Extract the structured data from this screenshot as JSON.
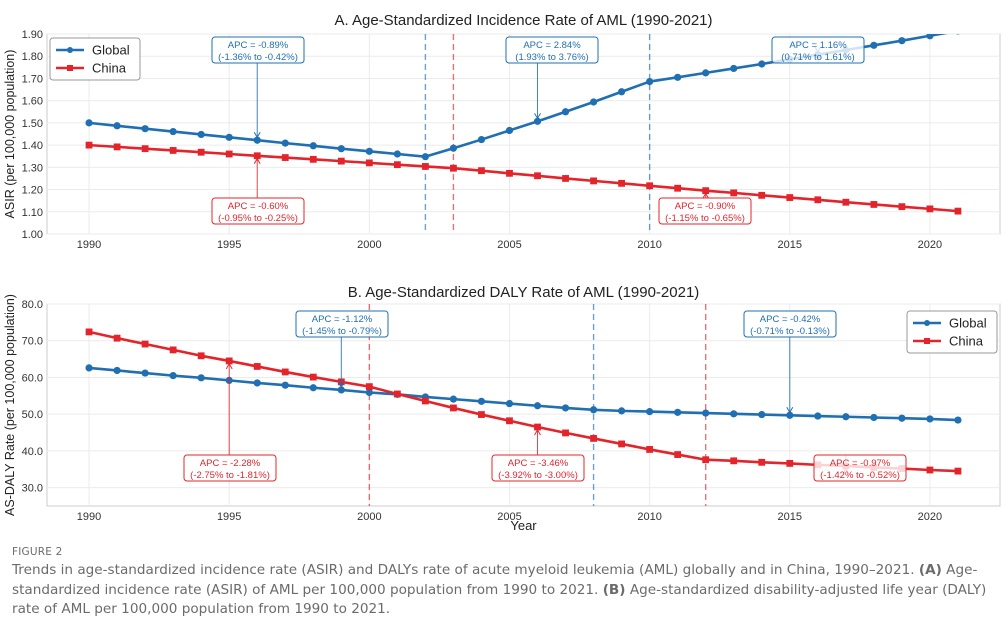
{
  "chart_data": [
    {
      "type": "line",
      "panel": "A",
      "title": "A. Age-Standardized Incidence Rate of AML (1990-2021)",
      "xlabel": "",
      "ylabel": "ASIR (per 100,000 population)",
      "xlim": [
        1988.5,
        2022.5
      ],
      "ylim": [
        1.0,
        1.9
      ],
      "x_ticks": [
        1990,
        1995,
        2000,
        2005,
        2010,
        2015,
        2020
      ],
      "y_ticks": [
        "1.00",
        "1.10",
        "1.20",
        "1.30",
        "1.40",
        "1.50",
        "1.60",
        "1.70",
        "1.80",
        "1.90"
      ],
      "grid": true,
      "legend": {
        "position": "top-left",
        "entries": [
          "Global",
          "China"
        ]
      },
      "x": [
        1990,
        1991,
        1992,
        1993,
        1994,
        1995,
        1996,
        1997,
        1998,
        1999,
        2000,
        2001,
        2002,
        2003,
        2004,
        2005,
        2006,
        2007,
        2008,
        2009,
        2010,
        2011,
        2012,
        2013,
        2014,
        2015,
        2016,
        2017,
        2018,
        2019,
        2020,
        2021
      ],
      "series": [
        {
          "name": "Global",
          "color": "#1f6fb2",
          "marker": "circle",
          "values": [
            1.5,
            1.487,
            1.474,
            1.461,
            1.448,
            1.435,
            1.422,
            1.409,
            1.397,
            1.384,
            1.372,
            1.36,
            1.348,
            1.386,
            1.425,
            1.466,
            1.507,
            1.55,
            1.594,
            1.64,
            1.686,
            1.705,
            1.725,
            1.745,
            1.765,
            1.786,
            1.807,
            1.828,
            1.849,
            1.87,
            1.892,
            1.914
          ]
        },
        {
          "name": "China",
          "color": "#e3242b",
          "marker": "square",
          "values": [
            1.4,
            1.392,
            1.384,
            1.376,
            1.368,
            1.36,
            1.352,
            1.344,
            1.336,
            1.328,
            1.32,
            1.312,
            1.304,
            1.296,
            1.285,
            1.273,
            1.262,
            1.25,
            1.239,
            1.228,
            1.217,
            1.206,
            1.195,
            1.185,
            1.174,
            1.164,
            1.154,
            1.143,
            1.133,
            1.123,
            1.113,
            1.103
          ]
        }
      ],
      "breakpoints": [
        {
          "year": 2002,
          "series": "Global"
        },
        {
          "year": 2003,
          "series": "China"
        },
        {
          "year": 2010,
          "series": "Global"
        }
      ],
      "annotations": [
        {
          "series": "Global",
          "line1": "APC = -0.89%",
          "line2": "(-1.36% to -0.42%)",
          "arrow_year": 1996,
          "dir": "down"
        },
        {
          "series": "Global",
          "line1": "APC = 2.84%",
          "line2": "(1.93% to 3.76%)",
          "arrow_year": 2006,
          "dir": "down"
        },
        {
          "series": "Global",
          "line1": "APC = 1.16%",
          "line2": "(0.71% to 1.61%)",
          "arrow_year": 2016,
          "dir": "down"
        },
        {
          "series": "China",
          "line1": "APC = -0.60%",
          "line2": "(-0.95% to -0.25%)",
          "arrow_year": 1996,
          "dir": "up"
        },
        {
          "series": "China",
          "line1": "APC = -0.90%",
          "line2": "(-1.15% to -0.65%)",
          "arrow_year": 2012,
          "dir": "up"
        }
      ]
    },
    {
      "type": "line",
      "panel": "B",
      "title": "B. Age-Standardized DALY Rate of AML (1990-2021)",
      "xlabel": "Year",
      "ylabel": "AS-DALY Rate (per 100,000 population)",
      "xlim": [
        1988.5,
        2022.5
      ],
      "ylim": [
        25.0,
        80.0
      ],
      "x_ticks": [
        1990,
        1995,
        2000,
        2005,
        2010,
        2015,
        2020
      ],
      "y_ticks": [
        "30.0",
        "40.0",
        "50.0",
        "60.0",
        "70.0",
        "80.0"
      ],
      "grid": true,
      "legend": {
        "position": "top-right",
        "entries": [
          "Global",
          "China"
        ]
      },
      "x": [
        1990,
        1991,
        1992,
        1993,
        1994,
        1995,
        1996,
        1997,
        1998,
        1999,
        2000,
        2001,
        2002,
        2003,
        2004,
        2005,
        2006,
        2007,
        2008,
        2009,
        2010,
        2011,
        2012,
        2013,
        2014,
        2015,
        2016,
        2017,
        2018,
        2019,
        2020,
        2021
      ],
      "series": [
        {
          "name": "Global",
          "color": "#1f6fb2",
          "marker": "circle",
          "values": [
            62.6,
            61.9,
            61.2,
            60.5,
            59.9,
            59.2,
            58.5,
            57.9,
            57.2,
            56.6,
            55.9,
            55.4,
            54.7,
            54.1,
            53.5,
            52.9,
            52.3,
            51.7,
            51.2,
            50.9,
            50.7,
            50.5,
            50.3,
            50.1,
            49.9,
            49.7,
            49.5,
            49.3,
            49.1,
            48.9,
            48.7,
            48.4
          ]
        },
        {
          "name": "China",
          "color": "#e3242b",
          "marker": "square",
          "values": [
            72.4,
            70.7,
            69.1,
            67.5,
            65.9,
            64.5,
            63.0,
            61.5,
            60.1,
            58.8,
            57.5,
            55.5,
            53.6,
            51.7,
            49.9,
            48.2,
            46.5,
            44.9,
            43.4,
            41.9,
            40.4,
            39.0,
            37.6,
            37.3,
            36.9,
            36.6,
            36.2,
            35.9,
            35.5,
            35.2,
            34.8,
            34.5
          ]
        }
      ],
      "breakpoints": [
        {
          "year": 2000,
          "series": "China"
        },
        {
          "year": 2008,
          "series": "Global"
        },
        {
          "year": 2012,
          "series": "China"
        }
      ],
      "annotations": [
        {
          "series": "Global",
          "line1": "APC = -1.12%",
          "line2": "(-1.45% to -0.79%)",
          "arrow_year": 1999,
          "dir": "down"
        },
        {
          "series": "Global",
          "line1": "APC = -0.42%",
          "line2": "(-0.71% to -0.13%)",
          "arrow_year": 2015,
          "dir": "down"
        },
        {
          "series": "China",
          "line1": "APC = -2.28%",
          "line2": "(-2.75% to -1.81%)",
          "arrow_year": 1995,
          "dir": "up"
        },
        {
          "series": "China",
          "line1": "APC = -3.46%",
          "line2": "(-3.92% to -3.00%)",
          "arrow_year": 2006,
          "dir": "up"
        },
        {
          "series": "China",
          "line1": "APC = -0.97%",
          "line2": "(-1.42% to -0.52%)",
          "arrow_year": 2017,
          "dir": "up"
        }
      ]
    }
  ],
  "caption": {
    "figure_label": "FIGURE 2",
    "text_1": "Trends in age-standardized incidence rate (ASIR) and DALYs rate of acute myeloid leukemia (AML) globally and in China, 1990–2021. ",
    "label_a": "(A)",
    "text_2": " Age-standardized incidence rate (ASIR) of AML per 100,000 population from 1990 to 2021. ",
    "label_b": "(B)",
    "text_3": " Age-standardized disability-adjusted life year (DALY) rate of AML per 100,000 population from 1990 to 2021."
  }
}
